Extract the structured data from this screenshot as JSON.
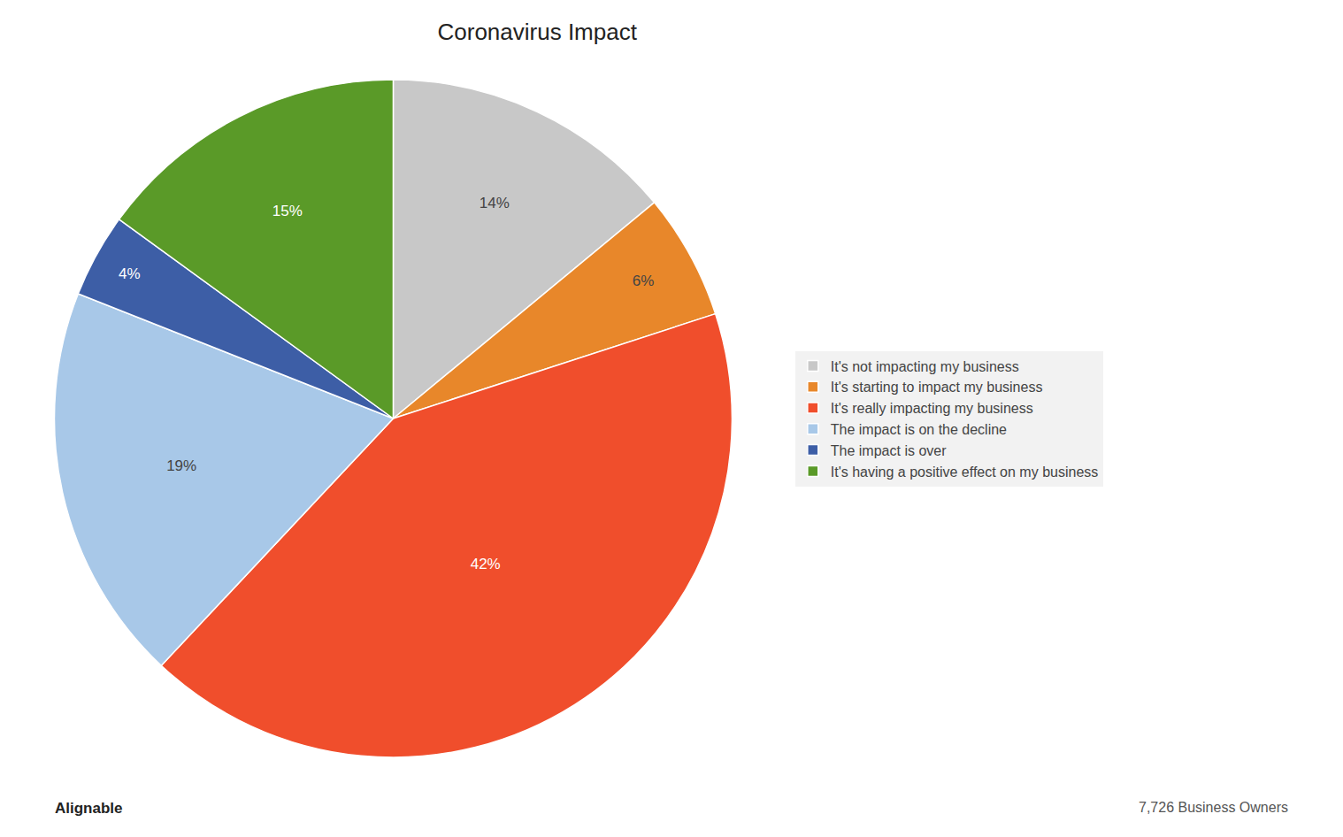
{
  "chart_data": {
    "type": "pie",
    "title": "Coronavirus Impact",
    "categories": [
      "It's not impacting my business",
      "It's starting to impact my business",
      "It's really impacting my business",
      "The impact is on the decline",
      "The impact is over",
      "It's having a positive effect on my business"
    ],
    "values": [
      14,
      6,
      42,
      19,
      4,
      15
    ],
    "value_labels": [
      "14%",
      "6%",
      "42%",
      "19%",
      "4%",
      "15%"
    ],
    "colors": [
      "#c8c8c8",
      "#e8872a",
      "#f04e2c",
      "#a8c8e8",
      "#3d5ea6",
      "#5a9a28"
    ],
    "data_labels": true,
    "legend": "right",
    "annotations": [
      "Alignable",
      "7,726 Business Owners"
    ]
  }
}
